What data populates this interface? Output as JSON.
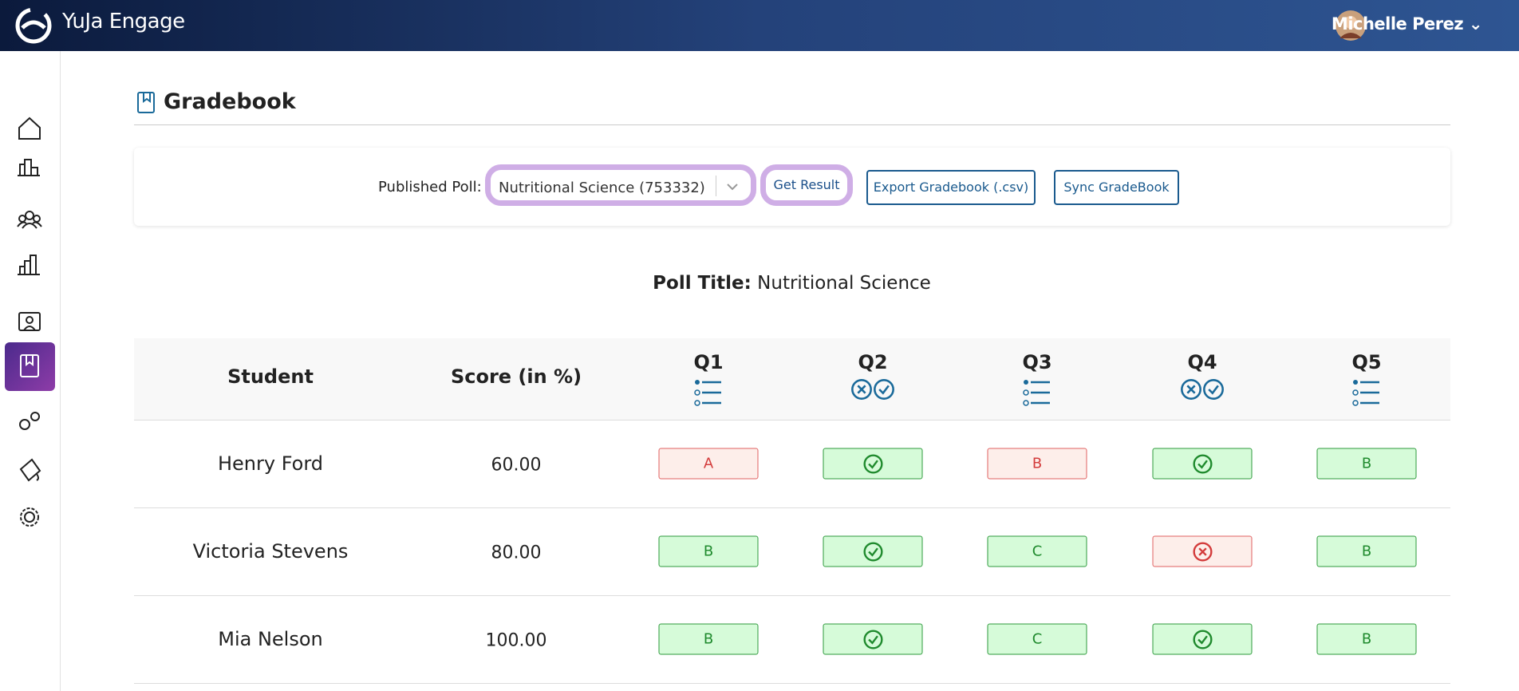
{
  "header": {
    "brand": "YuJa Engage",
    "user": "Michelle Perez"
  },
  "page": {
    "title": "Gradebook"
  },
  "toolbar": {
    "label": "Published Poll:",
    "select": "Nutritional Science (753332)",
    "buttons": [
      "Get Result",
      "Export Gradebook (.csv)",
      "Sync GradeBook"
    ]
  },
  "poll": {
    "label": "Poll Title:",
    "value": "Nutritional Science"
  },
  "table": {
    "columns": [
      "Student",
      "Score (in %)",
      "Q1",
      "Q2",
      "Q3",
      "Q4",
      "Q5"
    ],
    "rows": [
      {
        "student": "Henry Ford",
        "score": "60.00",
        "answers": [
          {
            "label": "A",
            "correct": false
          },
          {
            "correct": true
          },
          {
            "label": "B",
            "correct": false
          },
          {
            "correct": true
          },
          {
            "label": "B",
            "correct": true
          }
        ]
      },
      {
        "student": "Victoria Stevens",
        "score": "80.00",
        "answers": [
          {
            "label": "B",
            "correct": true
          },
          {
            "correct": true
          },
          {
            "label": "C",
            "correct": true
          },
          {
            "correct": false
          },
          {
            "label": "B",
            "correct": true
          }
        ]
      },
      {
        "student": "Mia Nelson",
        "score": "100.00",
        "answers": [
          {
            "label": "B",
            "correct": true
          },
          {
            "correct": true
          },
          {
            "label": "C",
            "correct": true
          },
          {
            "correct": true
          },
          {
            "label": "B",
            "correct": true
          }
        ]
      }
    ]
  }
}
